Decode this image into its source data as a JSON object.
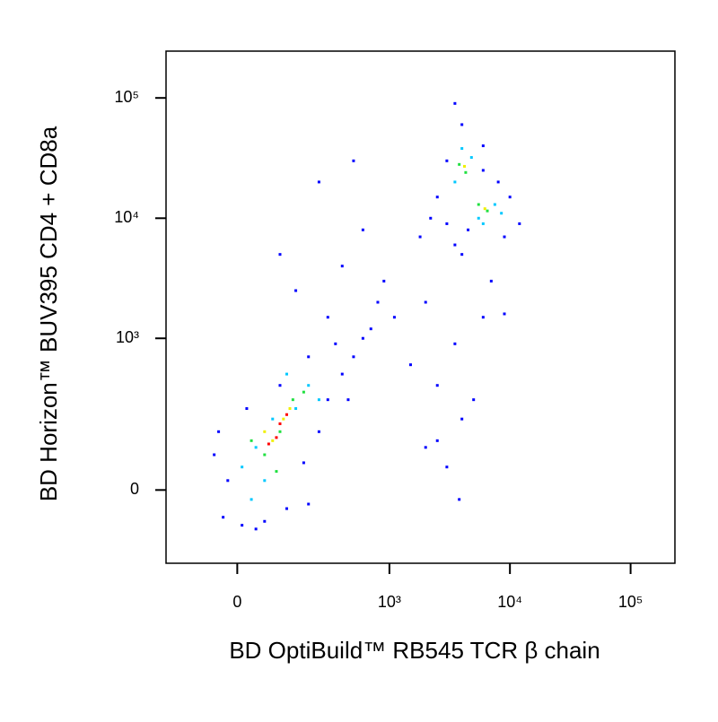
{
  "chart_data": {
    "type": "scatter",
    "xlabel": "BD OptiBuild™ RB545 TCR β chain",
    "ylabel": "BD Horizon™ BUV395 CD4 + CD8a",
    "xscale": "biexponential",
    "yscale": "biexponential",
    "xlim": [
      -200,
      233000
    ],
    "ylim": [
      -210,
      245000
    ],
    "xticks": [
      0,
      {
        "value": 1000,
        "label": "10³"
      },
      {
        "value": 10000,
        "label": "10⁴"
      },
      {
        "value": 100000,
        "label": "10⁵"
      }
    ],
    "yticks": [
      0,
      {
        "value": 1000,
        "label": "10³"
      },
      {
        "value": 10000,
        "label": "10⁴"
      },
      {
        "value": 100000,
        "label": "10⁵"
      }
    ],
    "series": [
      {
        "color": "#0000ff",
        "x": [
          -30,
          10,
          60,
          120,
          -20,
          -50,
          180,
          250,
          300,
          400,
          500,
          600,
          350,
          200,
          100,
          20,
          -40,
          450,
          700,
          800,
          300,
          150,
          100,
          400,
          600,
          250,
          500,
          900,
          1100,
          200,
          40,
          2000,
          3000,
          4000,
          2500,
          5000,
          1500,
          3500,
          6000,
          2000,
          4000,
          1800,
          3000,
          7000,
          9000,
          2500,
          3800,
          2500,
          3000,
          6000,
          8000,
          10000,
          12000,
          3500,
          4500,
          9000,
          2200,
          4000,
          3500,
          6000
        ],
        "y": [
          -60,
          -80,
          -70,
          -40,
          20,
          80,
          60,
          150,
          300,
          500,
          700,
          1000,
          900,
          700,
          400,
          250,
          150,
          300,
          1200,
          2000,
          1500,
          2500,
          5000,
          4000,
          8000,
          20000,
          30000,
          3000,
          1500,
          -30,
          -90,
          100,
          50,
          200,
          400,
          300,
          600,
          900,
          1500,
          2000,
          5000,
          7000,
          9000,
          3000,
          1600,
          120,
          -20,
          15000,
          30000,
          25000,
          20000,
          15000,
          9000,
          6000,
          8000,
          7000,
          10000,
          60000,
          90000,
          40000
        ]
      },
      {
        "color": "#00c8ff",
        "x": [
          40,
          80,
          150,
          60,
          10,
          200,
          120,
          250,
          30,
          3500,
          4800,
          4000,
          5500,
          7500,
          6000,
          8500
        ],
        "y": [
          100,
          200,
          250,
          20,
          50,
          400,
          500,
          300,
          -20,
          20000,
          32000,
          38000,
          10000,
          13000,
          9000,
          11000
        ]
      },
      {
        "color": "#20e040",
        "x": [
          60,
          100,
          140,
          30,
          180,
          90,
          4300,
          3800,
          6500,
          5500
        ],
        "y": [
          80,
          150,
          300,
          120,
          350,
          40,
          24000,
          28000,
          11500,
          13000
        ]
      },
      {
        "color": "#f0f000",
        "x": [
          80,
          110,
          60,
          130,
          4200,
          6200
        ],
        "y": [
          120,
          200,
          150,
          250,
          27000,
          12000
        ]
      },
      {
        "color": "#ff0000",
        "x": [
          90,
          100,
          70,
          120
        ],
        "y": [
          130,
          180,
          110,
          220
        ]
      }
    ]
  }
}
